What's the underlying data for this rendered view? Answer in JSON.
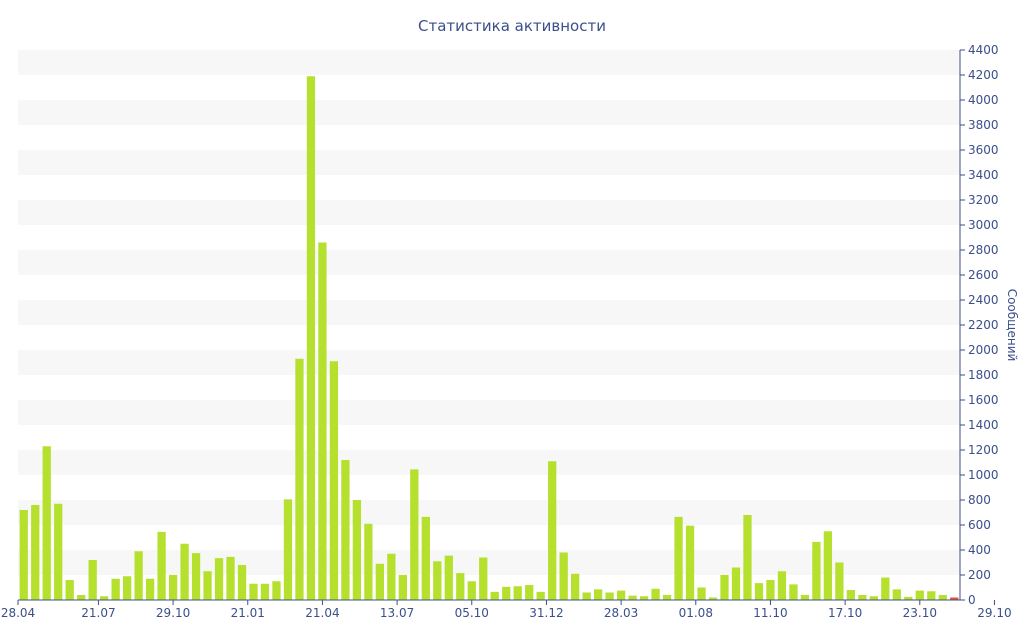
{
  "chart_data": {
    "type": "bar",
    "title": "Статистика активности",
    "ylabel": "Сообщений",
    "xlabel": "",
    "ylim": [
      0,
      4400
    ],
    "yticks": [
      0,
      200,
      400,
      600,
      800,
      1000,
      1200,
      1400,
      1600,
      1800,
      2000,
      2200,
      2400,
      2600,
      2800,
      3000,
      3200,
      3400,
      3600,
      3800,
      4000,
      4200,
      4400
    ],
    "x_tick_labels": [
      {
        "index": 0,
        "label": "28.04"
      },
      {
        "index": 6.5,
        "label": "21.07"
      },
      {
        "index": 13,
        "label": "29.10"
      },
      {
        "index": 19.5,
        "label": "21.01"
      },
      {
        "index": 26,
        "label": "21.04"
      },
      {
        "index": 32.5,
        "label": "13.07"
      },
      {
        "index": 39,
        "label": "05.10"
      },
      {
        "index": 45.5,
        "label": "31.12"
      },
      {
        "index": 52,
        "label": "28.03"
      },
      {
        "index": 58.5,
        "label": "01.08"
      },
      {
        "index": 65,
        "label": "11.10"
      },
      {
        "index": 71.5,
        "label": "17.10"
      },
      {
        "index": 78,
        "label": "23.10"
      },
      {
        "index": 84.5,
        "label": "29.10"
      }
    ],
    "values": [
      720,
      760,
      1230,
      770,
      160,
      40,
      320,
      30,
      170,
      190,
      390,
      170,
      545,
      200,
      450,
      375,
      230,
      335,
      345,
      280,
      130,
      130,
      150,
      805,
      1930,
      4190,
      2860,
      1910,
      1120,
      800,
      610,
      290,
      370,
      200,
      1045,
      665,
      310,
      355,
      215,
      150,
      340,
      65,
      105,
      110,
      120,
      65,
      1110,
      380,
      210,
      60,
      85,
      60,
      75,
      35,
      30,
      90,
      40,
      665,
      595,
      100,
      20,
      200,
      260,
      680,
      135,
      160,
      230,
      125,
      40,
      465,
      550,
      300,
      80,
      40,
      30,
      180,
      85,
      25,
      75,
      70,
      40,
      20
    ],
    "bar_color": "#b5e02e",
    "last_bar_color": "#e0543a",
    "grid": true,
    "grid_band_color": "#f7f7f7",
    "axis_color": "#3b4f8a",
    "legend": "none"
  }
}
